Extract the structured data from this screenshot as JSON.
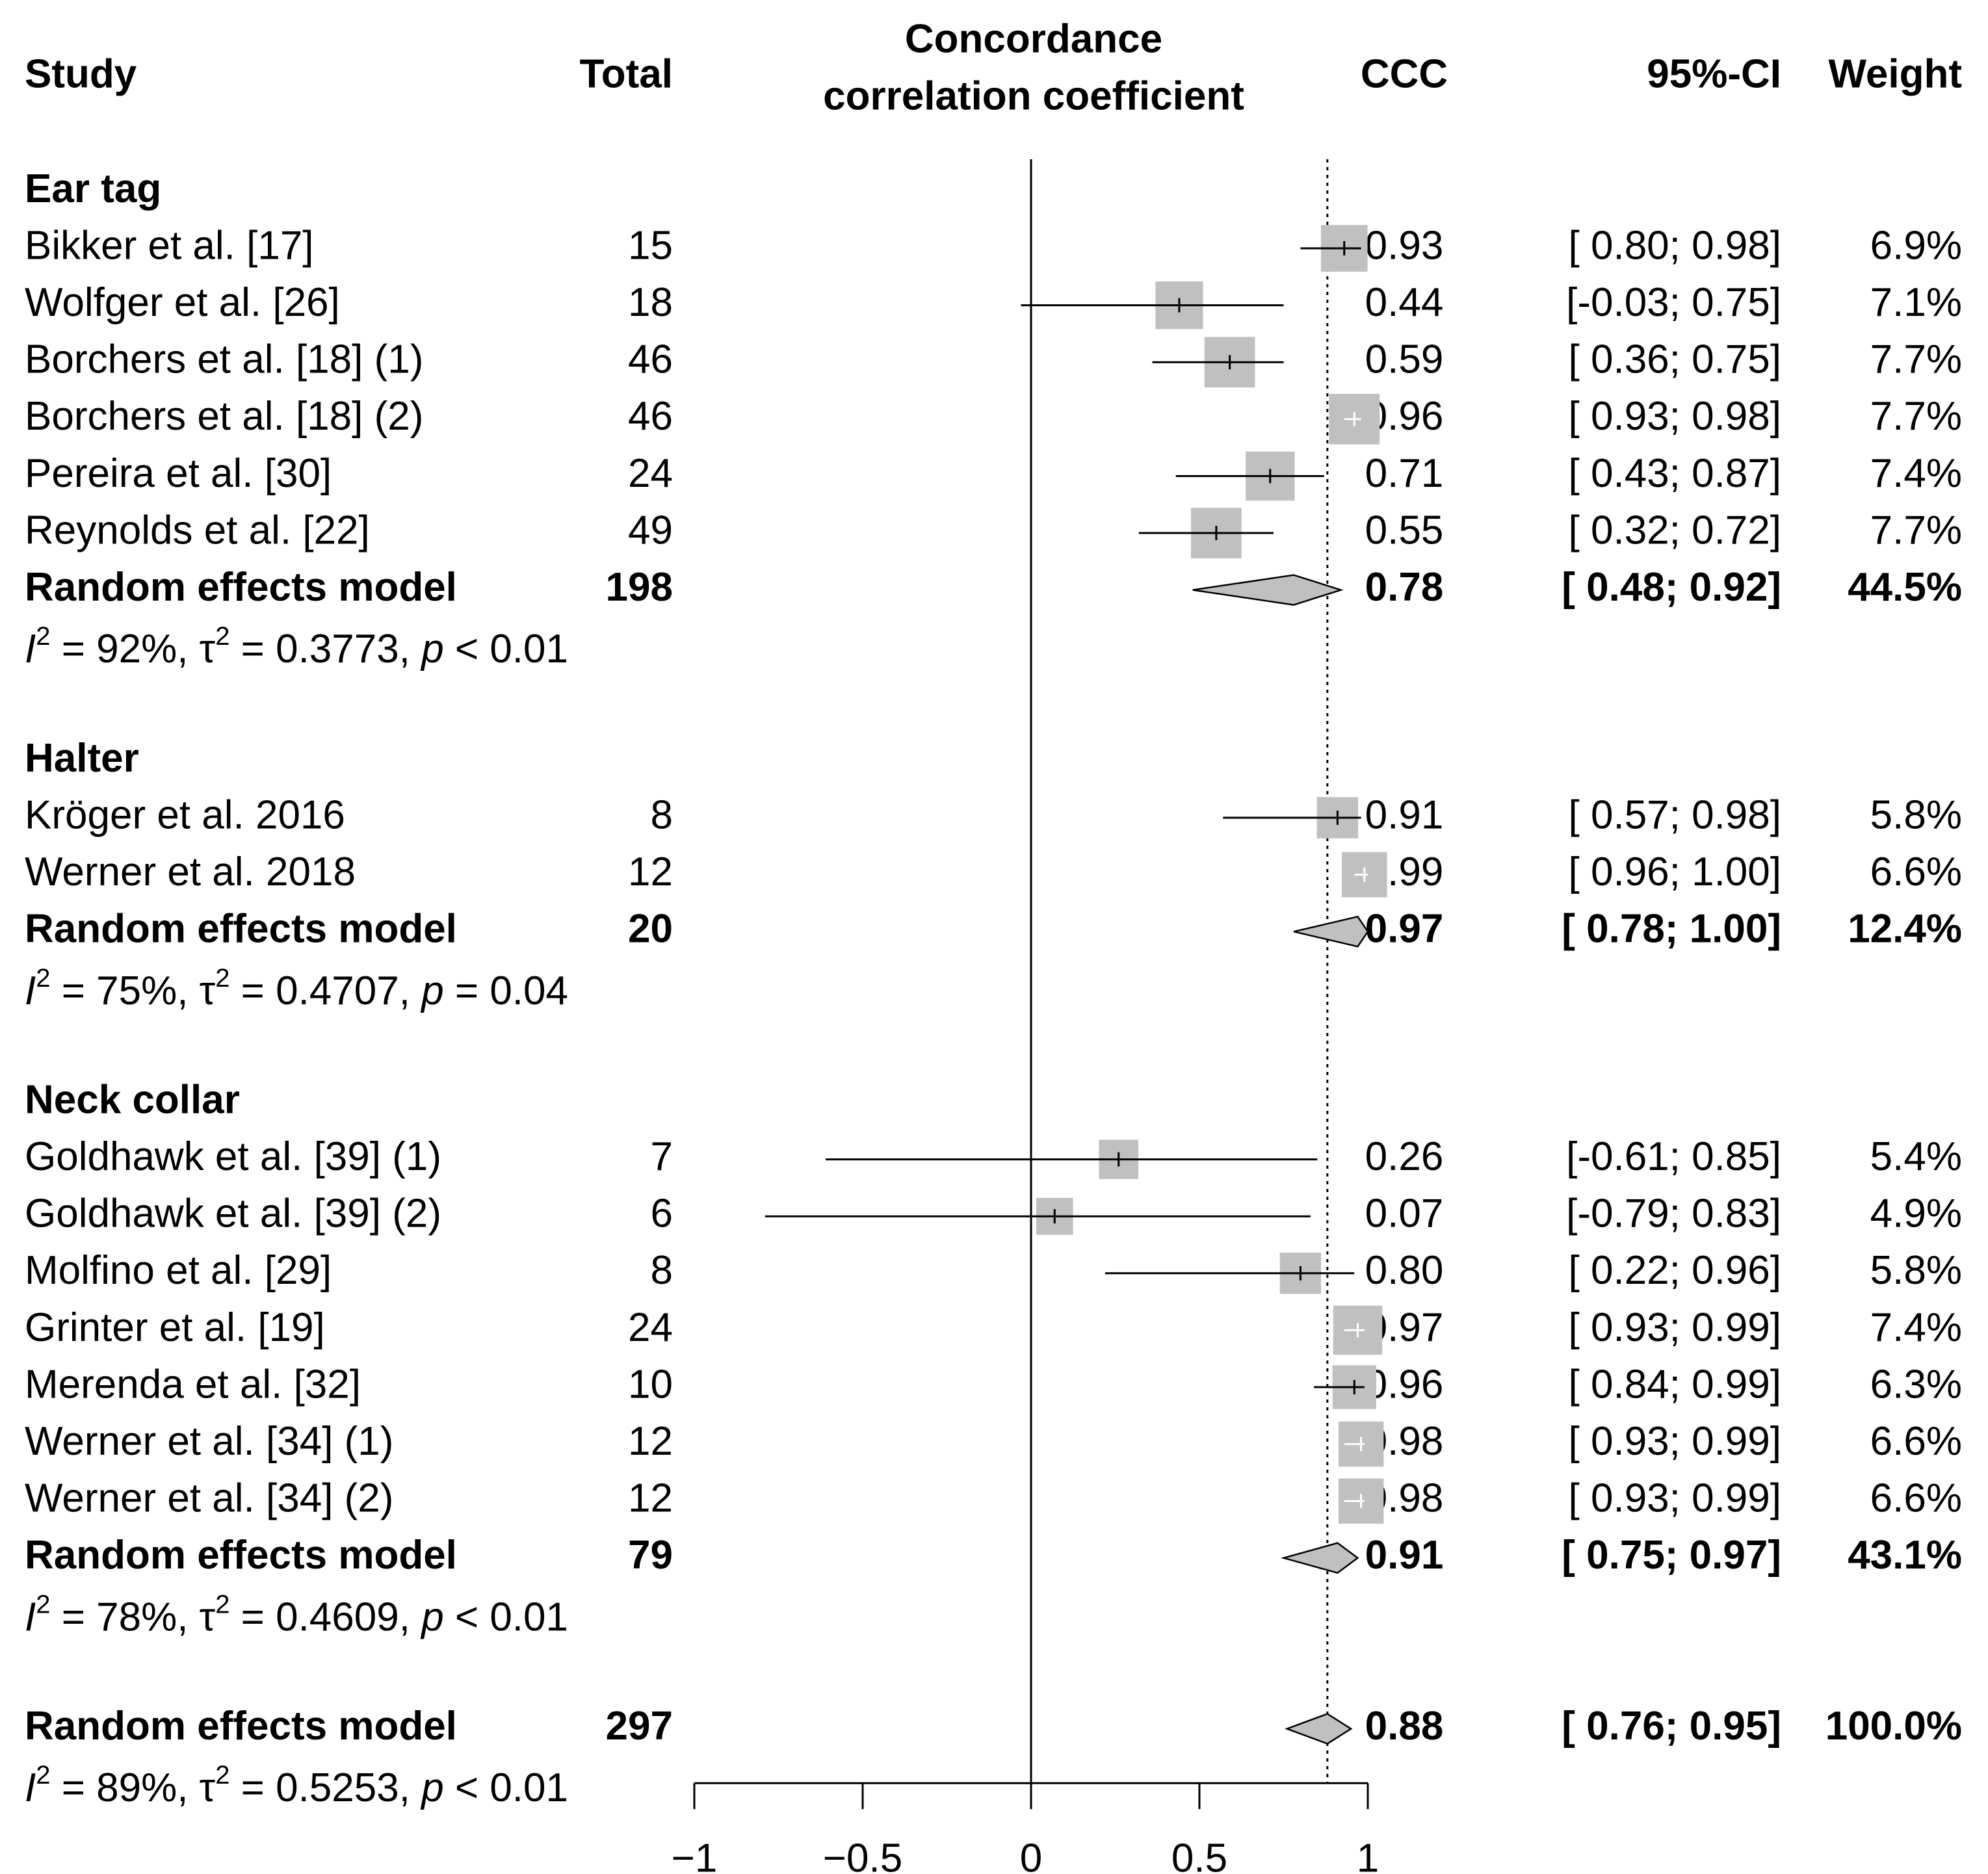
{
  "chart_data": {
    "type": "forest",
    "headers": {
      "study": "Study",
      "total": "Total",
      "axis_title_line1": "Concordance",
      "axis_title_line2": "correlation coefficient",
      "ccc": "CCC",
      "ci": "95%-CI",
      "weight": "Weight"
    },
    "xlim": [
      -1,
      1
    ],
    "x_ticks": [
      {
        "value": -1,
        "label": "−1"
      },
      {
        "value": -0.5,
        "label": "−0.5"
      },
      {
        "value": 0,
        "label": "0"
      },
      {
        "value": 0.5,
        "label": "0.5"
      },
      {
        "value": 1,
        "label": "1"
      }
    ],
    "null_line": 0,
    "overall_reference_line": 0.88,
    "groups": [
      {
        "name": "Ear tag",
        "studies": [
          {
            "label": "Bikker et al. [17]",
            "total": "15",
            "ccc": 0.93,
            "lower": 0.8,
            "upper": 0.98,
            "ccc_text": "0.93",
            "ci_text": "[ 0.80; 0.98]",
            "weight": 6.9,
            "weight_text": "6.9%"
          },
          {
            "label": "Wolfger et al. [26]",
            "total": "18",
            "ccc": 0.44,
            "lower": -0.03,
            "upper": 0.75,
            "ccc_text": "0.44",
            "ci_text": "[-0.03; 0.75]",
            "weight": 7.1,
            "weight_text": "7.1%"
          },
          {
            "label": "Borchers et al. [18] (1)",
            "total": "46",
            "ccc": 0.59,
            "lower": 0.36,
            "upper": 0.75,
            "ccc_text": "0.59",
            "ci_text": "[ 0.36; 0.75]",
            "weight": 7.7,
            "weight_text": "7.7%"
          },
          {
            "label": "Borchers et al. [18] (2)",
            "total": "46",
            "ccc": 0.96,
            "lower": 0.93,
            "upper": 0.98,
            "ccc_text": "0.96",
            "ci_text": "[ 0.93; 0.98]",
            "weight": 7.7,
            "weight_text": "7.7%"
          },
          {
            "label": "Pereira et al. [30]",
            "total": "24",
            "ccc": 0.71,
            "lower": 0.43,
            "upper": 0.87,
            "ccc_text": "0.71",
            "ci_text": "[ 0.43; 0.87]",
            "weight": 7.4,
            "weight_text": "7.4%"
          },
          {
            "label": "Reynolds et al. [22]",
            "total": "49",
            "ccc": 0.55,
            "lower": 0.32,
            "upper": 0.72,
            "ccc_text": "0.55",
            "ci_text": "[ 0.32; 0.72]",
            "weight": 7.7,
            "weight_text": "7.7%"
          }
        ],
        "model": {
          "label": "Random effects model",
          "total": "198",
          "est": 0.78,
          "lower": 0.48,
          "upper": 0.92,
          "ccc_text": "0.78",
          "ci_text": "[ 0.48; 0.92]",
          "weight_text": "44.5%"
        },
        "heterogeneity": {
          "i2": "= 92%, ",
          "tau2": "= 0.3773, ",
          "p": "< 0.01"
        }
      },
      {
        "name": "Halter",
        "studies": [
          {
            "label": "Kröger et al. 2016",
            "total": "8",
            "ccc": 0.91,
            "lower": 0.57,
            "upper": 0.98,
            "ccc_text": "0.91",
            "ci_text": "[ 0.57; 0.98]",
            "weight": 5.8,
            "weight_text": "5.8%"
          },
          {
            "label": "Werner et al. 2018",
            "total": "12",
            "ccc": 0.99,
            "lower": 0.96,
            "upper": 1.0,
            "ccc_text": "0.99",
            "ci_text": "[ 0.96; 1.00]",
            "weight": 6.6,
            "weight_text": "6.6%"
          }
        ],
        "model": {
          "label": "Random effects model",
          "total": "20",
          "est": 0.97,
          "lower": 0.78,
          "upper": 1.0,
          "ccc_text": "0.97",
          "ci_text": "[ 0.78; 1.00]",
          "weight_text": "12.4%"
        },
        "heterogeneity": {
          "i2": "= 75%, ",
          "tau2": "= 0.4707, ",
          "p": "= 0.04"
        }
      },
      {
        "name": "Neck collar",
        "studies": [
          {
            "label": "Goldhawk et al. [39] (1)",
            "total": "7",
            "ccc": 0.26,
            "lower": -0.61,
            "upper": 0.85,
            "ccc_text": "0.26",
            "ci_text": "[-0.61; 0.85]",
            "weight": 5.4,
            "weight_text": "5.4%"
          },
          {
            "label": "Goldhawk et al. [39] (2)",
            "total": "6",
            "ccc": 0.07,
            "lower": -0.79,
            "upper": 0.83,
            "ccc_text": "0.07",
            "ci_text": "[-0.79; 0.83]",
            "weight": 4.9,
            "weight_text": "4.9%"
          },
          {
            "label": "Molfino et al. [29]",
            "total": "8",
            "ccc": 0.8,
            "lower": 0.22,
            "upper": 0.96,
            "ccc_text": "0.80",
            "ci_text": "[ 0.22; 0.96]",
            "weight": 5.8,
            "weight_text": "5.8%"
          },
          {
            "label": "Grinter et al. [19]",
            "total": "24",
            "ccc": 0.97,
            "lower": 0.93,
            "upper": 0.99,
            "ccc_text": "0.97",
            "ci_text": "[ 0.93; 0.99]",
            "weight": 7.4,
            "weight_text": "7.4%"
          },
          {
            "label": "Merenda et al. [32]",
            "total": "10",
            "ccc": 0.96,
            "lower": 0.84,
            "upper": 0.99,
            "ccc_text": "0.96",
            "ci_text": "[ 0.84; 0.99]",
            "weight": 6.3,
            "weight_text": "6.3%"
          },
          {
            "label": "Werner et al. [34] (1)",
            "total": "12",
            "ccc": 0.98,
            "lower": 0.93,
            "upper": 0.99,
            "ccc_text": "0.98",
            "ci_text": "[ 0.93; 0.99]",
            "weight": 6.6,
            "weight_text": "6.6%"
          },
          {
            "label": "Werner et al. [34] (2)",
            "total": "12",
            "ccc": 0.98,
            "lower": 0.93,
            "upper": 0.99,
            "ccc_text": "0.98",
            "ci_text": "[ 0.93; 0.99]",
            "weight": 6.6,
            "weight_text": "6.6%"
          }
        ],
        "model": {
          "label": "Random effects model",
          "total": "79",
          "est": 0.91,
          "lower": 0.75,
          "upper": 0.97,
          "ccc_text": "0.91",
          "ci_text": "[ 0.75; 0.97]",
          "weight_text": "43.1%"
        },
        "heterogeneity": {
          "i2": "= 78%, ",
          "tau2": "= 0.4609, ",
          "p": "< 0.01"
        }
      }
    ],
    "overall": {
      "model": {
        "label": "Random effects model",
        "total": "297",
        "est": 0.88,
        "lower": 0.76,
        "upper": 0.95,
        "ccc_text": "0.88",
        "ci_text": "[ 0.76; 0.95]",
        "weight_text": "100.0%"
      },
      "heterogeneity": {
        "i2": "= 89%, ",
        "tau2": "= 0.5253, ",
        "p": "< 0.01"
      }
    },
    "colors": {
      "box": "#c0c0c0",
      "diamond": "#c0c0c0",
      "line": "#000000",
      "light_tick": "#ffffff"
    }
  }
}
